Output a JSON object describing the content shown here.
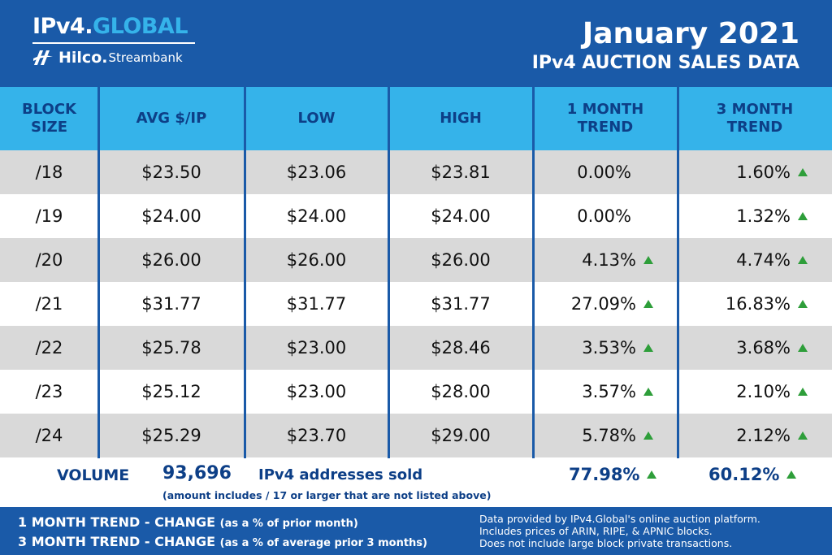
{
  "header": {
    "brand_main": "IPv4.",
    "brand_accent": "GLOBAL",
    "brand_hilco": "Hilco.",
    "brand_stream": "Streambank",
    "title": "January 2021",
    "subtitle": "IPv4 AUCTION SALES DATA"
  },
  "columns": [
    {
      "label": "BLOCK\nSIZE"
    },
    {
      "label": "AVG $/IP"
    },
    {
      "label": "LOW"
    },
    {
      "label": "HIGH"
    },
    {
      "label": "1 MONTH\nTREND"
    },
    {
      "label": "3 MONTH\nTREND"
    }
  ],
  "chart_data": {
    "type": "table",
    "title": "IPv4 AUCTION SALES DATA",
    "columns": [
      "BLOCK SIZE",
      "AVG $/IP",
      "LOW",
      "HIGH",
      "1 MONTH TREND",
      "3 MONTH TREND"
    ],
    "rows": [
      {
        "block": "/18",
        "avg": "$23.50",
        "low": "$23.06",
        "high": "$23.81",
        "m1": "0.00%",
        "m1_up": false,
        "m3": "1.60%",
        "m3_up": true
      },
      {
        "block": "/19",
        "avg": "$24.00",
        "low": "$24.00",
        "high": "$24.00",
        "m1": "0.00%",
        "m1_up": false,
        "m3": "1.32%",
        "m3_up": true
      },
      {
        "block": "/20",
        "avg": "$26.00",
        "low": "$26.00",
        "high": "$26.00",
        "m1": "4.13%",
        "m1_up": true,
        "m3": "4.74%",
        "m3_up": true
      },
      {
        "block": "/21",
        "avg": "$31.77",
        "low": "$31.77",
        "high": "$31.77",
        "m1": "27.09%",
        "m1_up": true,
        "m3": "16.83%",
        "m3_up": true
      },
      {
        "block": "/22",
        "avg": "$25.78",
        "low": "$23.00",
        "high": "$28.46",
        "m1": "3.53%",
        "m1_up": true,
        "m3": "3.68%",
        "m3_up": true
      },
      {
        "block": "/23",
        "avg": "$25.12",
        "low": "$23.00",
        "high": "$28.00",
        "m1": "3.57%",
        "m1_up": true,
        "m3": "2.10%",
        "m3_up": true
      },
      {
        "block": "/24",
        "avg": "$25.29",
        "low": "$23.70",
        "high": "$29.00",
        "m1": "5.78%",
        "m1_up": true,
        "m3": "2.12%",
        "m3_up": true
      }
    ]
  },
  "volume": {
    "label": "VOLUME",
    "count": "93,696",
    "text": "IPv4 addresses sold",
    "note": "(amount includes / 17 or larger that are not listed above)",
    "m1": "77.98%",
    "m3": "60.12%"
  },
  "footer": {
    "line1_bold": "1 MONTH TREND - CHANGE",
    "line1_paren": "(as a % of prior month)",
    "line2_bold": "3 MONTH TREND - CHANGE",
    "line2_paren": "(as a % of average prior 3 months)",
    "source1": "Data provided by IPv4.Global's online auction platform.",
    "source2": "Includes prices of ARIN, RIPE, & APNIC blocks.",
    "source3": "Does not include large block private transactions."
  },
  "colors": {
    "navy": "#1a5aa8",
    "light_blue": "#35b3ea",
    "dark_text": "#0d3f87",
    "row_gray": "#d9d9d9",
    "up_green": "#2e9e3a"
  }
}
